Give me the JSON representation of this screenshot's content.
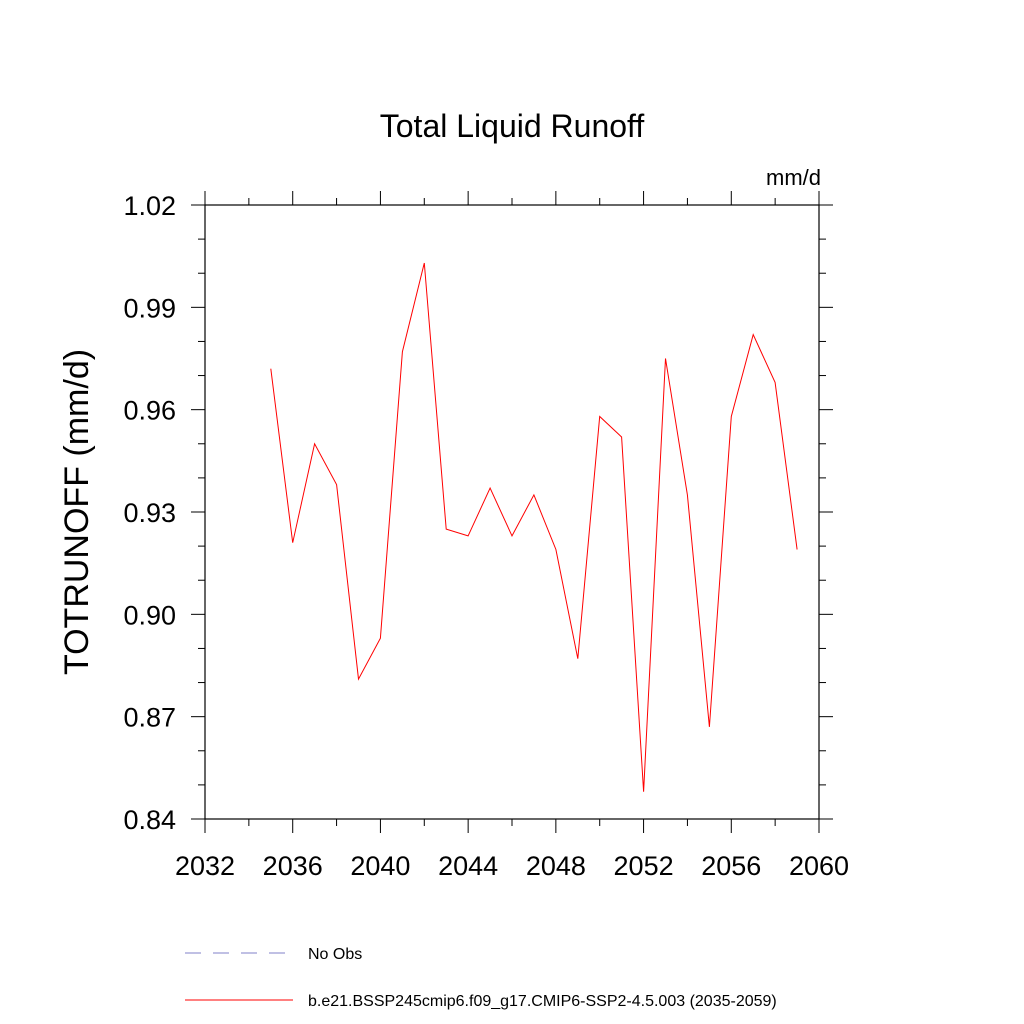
{
  "chart_data": {
    "type": "line",
    "title": "Total Liquid Runoff",
    "units": "mm/d",
    "ylabel": "TOTRUNOFF  (mm/d)",
    "xlabel": "",
    "xlim": [
      2032,
      2060
    ],
    "ylim": [
      0.84,
      1.02
    ],
    "xticks": [
      "2032",
      "2036",
      "2040",
      "2044",
      "2048",
      "2052",
      "2056",
      "2060"
    ],
    "yticks": [
      "0.84",
      "0.87",
      "0.90",
      "0.93",
      "0.96",
      "0.99",
      "1.02"
    ],
    "grid": false,
    "legend_position": "bottom",
    "series": [
      {
        "name": "b.e21.BSSP245cmip6.f09_g17.CMIP6-SSP2-4.5.003 (2035-2059)",
        "color": "#ff0000",
        "style": "solid",
        "x": [
          2035,
          2036,
          2037,
          2038,
          2039,
          2040,
          2041,
          2042,
          2043,
          2044,
          2045,
          2046,
          2047,
          2048,
          2049,
          2050,
          2051,
          2052,
          2053,
          2054,
          2055,
          2056,
          2057,
          2058,
          2059
        ],
        "y": [
          0.972,
          0.921,
          0.95,
          0.938,
          0.881,
          0.893,
          0.977,
          1.003,
          0.925,
          0.923,
          0.937,
          0.923,
          0.935,
          0.919,
          0.887,
          0.958,
          0.952,
          0.848,
          0.975,
          0.935,
          0.867,
          0.958,
          0.982,
          0.968,
          0.919
        ]
      }
    ],
    "legend": [
      {
        "label": "No Obs",
        "color": "#8080c8",
        "style": "dashed"
      },
      {
        "label": "b.e21.BSSP245cmip6.f09_g17.CMIP6-SSP2-4.5.003 (2035-2059)",
        "color": "#ff0000",
        "style": "solid"
      }
    ]
  }
}
